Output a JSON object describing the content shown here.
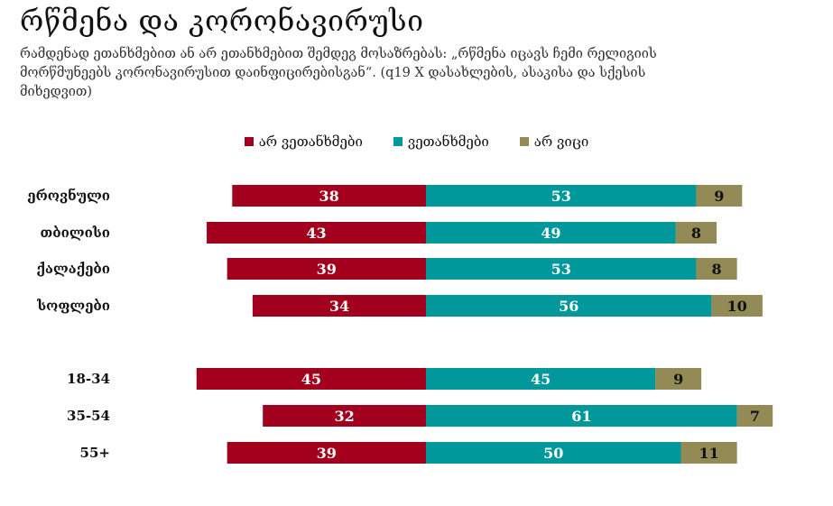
{
  "title": "რწმენა და კორონავირუსი",
  "subtitle": "რამდენად ეთანხმებით ან არ ეთანხმებით შემდეგ მოსაზრებას: „რწმენა იცავს ჩემი რელიგიის მორწმუნეებს კორონავირუსით დაინფიცირებისგან“. (q19 X დასახლების, ასაკისა და სქესის მიხედვით)",
  "colors": {
    "disagree": "#a3001e",
    "agree": "#00989a",
    "dont_know": "#938a55"
  },
  "chart_data": {
    "type": "bar",
    "orientation": "horizontal-diverging-stacked",
    "categories": [
      "ეროვნული",
      "თბილისი",
      "ქალაქები",
      "სოფლები",
      "18-34",
      "35-54",
      "55+"
    ],
    "groups": [
      [
        "ეროვნული",
        "თბილისი",
        "ქალაქები",
        "სოფლები"
      ],
      [
        "18-34",
        "35-54",
        "55+"
      ]
    ],
    "series": [
      {
        "name": "არ ვეთანხმები",
        "values": [
          38,
          43,
          39,
          34,
          45,
          32,
          39
        ]
      },
      {
        "name": "ვეთანხმები",
        "values": [
          53,
          49,
          53,
          56,
          45,
          61,
          50
        ]
      },
      {
        "name": "არ ვიცი",
        "values": [
          9,
          8,
          8,
          10,
          9,
          7,
          11
        ]
      }
    ],
    "legend_position": "top-center",
    "grid": false
  }
}
